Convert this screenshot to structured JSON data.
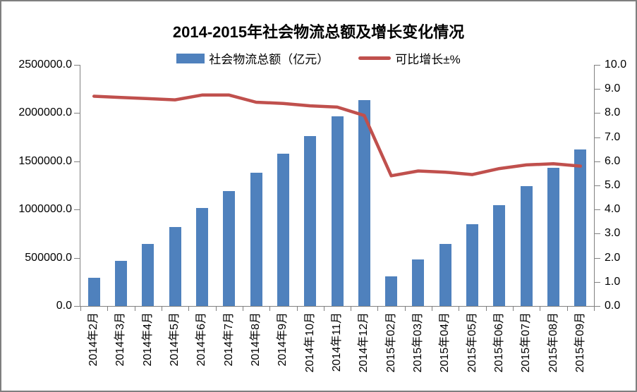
{
  "colors": {
    "bar": "#4F81BD",
    "line": "#C0504D",
    "axis": "#808080",
    "frame": "#7F7F7F",
    "background": "#FFFFFF",
    "text": "#000000"
  },
  "chart_data": {
    "type": "bar+line",
    "title": "2014-2015年社会物流总额及增长变化情况",
    "categories": [
      "2014年2月",
      "2014年3月",
      "2014年4月",
      "2014年5月",
      "2014年6月",
      "2014年7月",
      "2014年8月",
      "2014年9月",
      "2014年10月",
      "2014年11月",
      "2014年12月",
      "2015年02月",
      "2015年03月",
      "2015年04月",
      "2015年05月",
      "2015年06月",
      "2015年07月",
      "2015年08月",
      "2015年09月"
    ],
    "series": [
      {
        "name": "社会物流总额（亿元）",
        "type": "bar",
        "axis": "left",
        "color": "#4F81BD",
        "values": [
          290000,
          470000,
          640000,
          820000,
          1015000,
          1190000,
          1380000,
          1580000,
          1765000,
          1970000,
          2135000,
          305000,
          485000,
          645000,
          845000,
          1045000,
          1240000,
          1430000,
          1620000
        ]
      },
      {
        "name": "可比增长±%",
        "type": "line",
        "axis": "right",
        "color": "#C0504D",
        "values": [
          8.7,
          8.65,
          8.6,
          8.55,
          8.75,
          8.75,
          8.45,
          8.4,
          8.3,
          8.25,
          7.9,
          5.4,
          5.6,
          5.55,
          5.45,
          5.7,
          5.85,
          5.9,
          5.8
        ]
      }
    ],
    "left_axis": {
      "min": 0,
      "max": 2500000,
      "step": 500000,
      "tick_labels": [
        "2500000.0",
        "2000000.0",
        "1500000.0",
        "1000000.0",
        "500000.0",
        "0.0"
      ]
    },
    "right_axis": {
      "min": 0,
      "max": 10,
      "step": 1,
      "tick_labels": [
        "10.0",
        "9.0",
        "8.0",
        "7.0",
        "6.0",
        "5.0",
        "4.0",
        "3.0",
        "2.0",
        "1.0",
        "0.0"
      ]
    },
    "grid": false,
    "legend_position": "top",
    "x_tick_rotation": -90
  }
}
